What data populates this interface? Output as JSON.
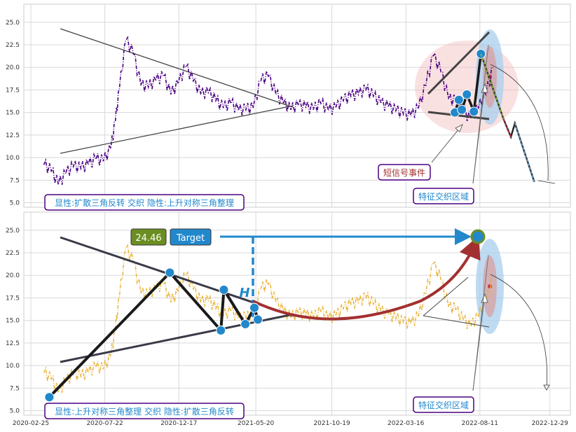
{
  "chart_data": [
    {
      "type": "line",
      "panel": "top",
      "ylim": [
        4.5,
        27.0
      ],
      "yticks": [
        "5.0",
        "7.5",
        "10.0",
        "12.5",
        "15.0",
        "17.5",
        "20.0",
        "22.5",
        "25.0"
      ],
      "series_color": "#4b0082",
      "series": [
        {
          "x": [
            "2020-03-22",
            "2020-04-06",
            "2020-04-20",
            "2020-05-05",
            "2020-05-20",
            "2020-06-04",
            "2020-06-19",
            "2020-07-04",
            "2020-07-19",
            "2020-08-03",
            "2020-08-12",
            "2020-08-20",
            "2020-09-02",
            "2020-09-17",
            "2020-10-02",
            "2020-10-17",
            "2020-11-01",
            "2020-11-16",
            "2020-12-01",
            "2020-12-16",
            "2020-12-31",
            "2021-01-15",
            "2021-01-30",
            "2021-02-14",
            "2021-03-01",
            "2021-03-16",
            "2021-03-31",
            "2021-04-15",
            "2021-04-30",
            "2021-05-15",
            "2021-05-30",
            "2021-06-14",
            "2021-06-29",
            "2021-07-14",
            "2021-07-29",
            "2021-08-13",
            "2021-08-28",
            "2021-09-12",
            "2021-09-27",
            "2021-10-12",
            "2021-10-27",
            "2021-11-11",
            "2021-11-26",
            "2021-12-11",
            "2021-12-26",
            "2022-01-10",
            "2022-01-25",
            "2022-02-09",
            "2022-02-24",
            "2022-03-11",
            "2022-03-26",
            "2022-04-10",
            "2022-04-25",
            "2022-05-10",
            "2022-05-25",
            "2022-06-09",
            "2022-06-24",
            "2022-07-09",
            "2022-07-24",
            "2022-08-08",
            "2022-08-23",
            "2022-09-07"
          ],
          "values": [
            9.2,
            8.5,
            7.0,
            8.2,
            9.0,
            8.8,
            9.2,
            9.8,
            9.6,
            11.0,
            14.0,
            17.5,
            23.0,
            21.5,
            18.0,
            17.8,
            18.5,
            19.0,
            17.0,
            18.2,
            20.0,
            18.5,
            17.0,
            17.2,
            16.3,
            15.5,
            16.0,
            15.2,
            15.3,
            15.5,
            18.5,
            19.0,
            17.0,
            16.0,
            15.3,
            15.8,
            15.6,
            15.3,
            16.0,
            15.2,
            15.5,
            16.3,
            16.8,
            17.0,
            17.5,
            16.8,
            16.0,
            15.6,
            15.2,
            14.8,
            14.6,
            15.4,
            18.0,
            21.3,
            19.5,
            16.5,
            16.2,
            15.0,
            14.3,
            15.5,
            17.0,
            20.0
          ]
        }
      ],
      "overlays": {
        "pattern_points": [
          [
            "2022-06-22",
            15.0
          ],
          [
            "2022-06-30",
            16.4
          ],
          [
            "2022-07-06",
            15.3
          ],
          [
            "2022-07-16",
            17.0
          ],
          [
            "2022-07-30",
            15.1
          ],
          [
            "2022-08-13",
            21.5
          ]
        ],
        "projection_line": [
          [
            "2022-08-13",
            21.5
          ],
          [
            "2022-09-27",
            14.3
          ],
          [
            "2022-10-12",
            12.3
          ],
          [
            "2022-10-20",
            13.8
          ],
          [
            "2022-11-28",
            7.3
          ]
        ]
      },
      "annotations": {
        "short_signal": "短信号事件",
        "feature_zone": "特征交织区域",
        "pattern_label": "显性:扩散三角反转 交织 隐性:上升对称三角整理"
      }
    },
    {
      "type": "line",
      "panel": "bottom",
      "ylim": [
        4.5,
        27.0
      ],
      "yticks": [
        "5.0",
        "7.5",
        "10.0",
        "12.5",
        "15.0",
        "17.5",
        "20.0",
        "22.5",
        "25.0"
      ],
      "xticks": [
        "2020-02-25",
        "2020-07-22",
        "2020-12-17",
        "2021-05-20",
        "2021-10-19",
        "2022-03-16",
        "2022-08-11",
        "2022-12-29"
      ],
      "series_color": "#e8b030",
      "overlays": {
        "pattern_points": [
          [
            "2020-04-02",
            6.5
          ],
          [
            "2020-11-29",
            20.3
          ],
          [
            "2021-03-11",
            13.9
          ],
          [
            "2021-03-17",
            18.4
          ],
          [
            "2021-04-29",
            14.6
          ],
          [
            "2021-05-17",
            16.4
          ],
          [
            "2021-05-24",
            15.1
          ]
        ],
        "target_point": [
          "2022-08-31",
          24.46
        ],
        "target_value": "24.46",
        "target_label": "Target",
        "h_label": "H"
      },
      "annotations": {
        "feature_zone": "特征交织区域",
        "pattern_label": "显性:上升对称三角整理 交织 隐性:扩散三角反转"
      }
    }
  ]
}
